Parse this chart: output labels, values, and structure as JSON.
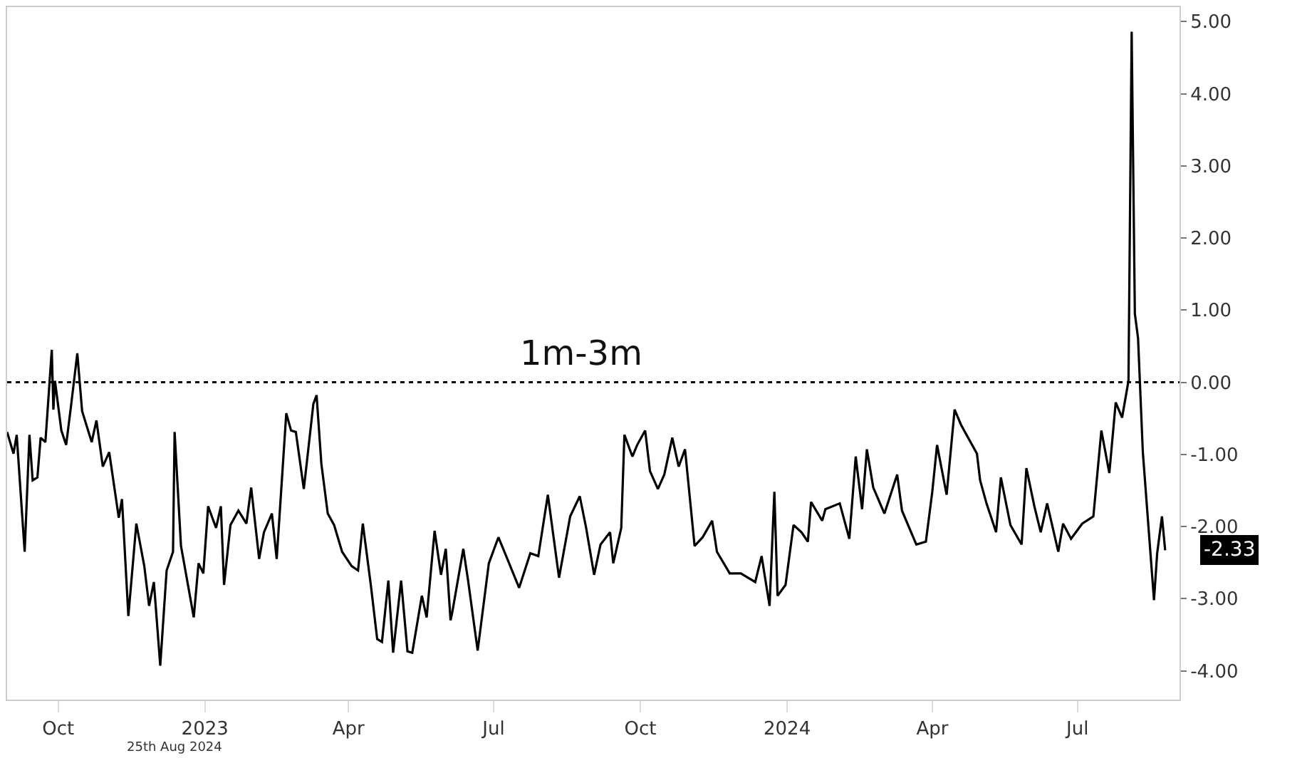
{
  "chart_data": {
    "type": "line",
    "x": [
      "2022-08-30",
      "2022-09-03",
      "2022-09-05",
      "2022-09-10",
      "2022-09-13",
      "2022-09-15",
      "2022-09-18",
      "2022-09-20",
      "2022-09-23",
      "2022-09-27",
      "2022-09-28",
      "2022-09-29",
      "2022-10-03",
      "2022-10-06",
      "2022-10-09",
      "2022-10-13",
      "2022-10-16",
      "2022-10-22",
      "2022-10-25",
      "2022-10-29",
      "2022-11-02",
      "2022-11-08",
      "2022-11-10",
      "2022-11-14",
      "2022-11-19",
      "2022-11-24",
      "2022-11-27",
      "2022-11-30",
      "2022-12-04",
      "2022-12-08",
      "2022-12-12",
      "2022-12-13",
      "2022-12-17",
      "2022-12-25",
      "2022-12-28",
      "2022-12-31",
      "2023-01-03",
      "2023-01-08",
      "2023-01-11",
      "2023-01-13",
      "2023-01-17",
      "2023-01-22",
      "2023-01-27",
      "2023-01-30",
      "2023-02-04",
      "2023-02-07",
      "2023-02-12",
      "2023-02-15",
      "2023-02-17",
      "2023-02-21",
      "2023-02-24",
      "2023-02-27",
      "2023-03-04",
      "2023-03-06",
      "2023-03-10",
      "2023-03-12",
      "2023-03-15",
      "2023-03-19",
      "2023-03-23",
      "2023-03-28",
      "2023-04-03",
      "2023-04-07",
      "2023-04-10",
      "2023-04-15",
      "2023-04-19",
      "2023-04-22",
      "2023-04-26",
      "2023-04-29",
      "2023-05-04",
      "2023-05-08",
      "2023-05-11",
      "2023-05-17",
      "2023-05-20",
      "2023-05-25",
      "2023-05-29",
      "2023-06-01",
      "2023-06-04",
      "2023-06-05",
      "2023-06-12",
      "2023-06-15",
      "2023-06-21",
      "2023-06-28",
      "2023-07-04",
      "2023-07-07",
      "2023-07-17",
      "2023-07-24",
      "2023-07-29",
      "2023-08-04",
      "2023-08-11",
      "2023-08-18",
      "2023-08-24",
      "2023-08-28",
      "2023-09-02",
      "2023-09-06",
      "2023-09-12",
      "2023-09-14",
      "2023-09-19",
      "2023-09-21",
      "2023-09-26",
      "2023-09-29",
      "2023-10-04",
      "2023-10-07",
      "2023-10-12",
      "2023-10-16",
      "2023-10-21",
      "2023-10-25",
      "2023-10-29",
      "2023-11-04",
      "2023-11-09",
      "2023-11-15",
      "2023-11-18",
      "2023-11-26",
      "2023-12-03",
      "2023-12-12",
      "2023-12-16",
      "2023-12-21",
      "2023-12-24",
      "2023-12-26",
      "2023-12-31",
      "2024-01-05",
      "2024-01-10",
      "2024-01-14",
      "2024-01-16",
      "2024-01-23",
      "2024-01-25",
      "2024-02-03",
      "2024-02-09",
      "2024-02-13",
      "2024-02-17",
      "2024-02-20",
      "2024-02-24",
      "2024-03-02",
      "2024-03-10",
      "2024-03-13",
      "2024-03-22",
      "2024-03-28",
      "2024-04-01",
      "2024-04-04",
      "2024-04-10",
      "2024-04-15",
      "2024-04-19",
      "2024-04-29",
      "2024-05-01",
      "2024-05-05",
      "2024-05-11",
      "2024-05-14",
      "2024-05-20",
      "2024-05-27",
      "2024-05-30",
      "2024-06-04",
      "2024-06-08",
      "2024-06-12",
      "2024-06-19",
      "2024-06-22",
      "2024-06-27",
      "2024-07-04",
      "2024-07-11",
      "2024-07-16",
      "2024-07-21",
      "2024-07-25",
      "2024-07-29",
      "2024-08-02",
      "2024-08-04",
      "2024-08-06",
      "2024-08-08",
      "2024-08-11",
      "2024-08-18",
      "2024-08-20",
      "2024-08-23",
      "2024-08-25"
    ],
    "series": [
      {
        "color": "#000000",
        "values": [
          -0.69,
          -0.99,
          -0.73,
          -2.35,
          -0.73,
          -1.36,
          -1.32,
          -0.77,
          -0.83,
          0.45,
          -0.38,
          0.02,
          -0.67,
          -0.87,
          -0.34,
          0.4,
          -0.4,
          -0.83,
          -0.53,
          -1.17,
          -0.97,
          -1.88,
          -1.62,
          -3.24,
          -1.96,
          -2.55,
          -3.1,
          -2.77,
          -3.93,
          -2.61,
          -2.35,
          -0.69,
          -2.27,
          -3.26,
          -2.51,
          -2.65,
          -1.72,
          -2.02,
          -1.72,
          -2.81,
          -1.98,
          -1.78,
          -1.96,
          -1.46,
          -2.45,
          -2.08,
          -1.82,
          -2.45,
          -1.78,
          -0.43,
          -0.67,
          -0.69,
          -1.48,
          -1.09,
          -0.3,
          -0.18,
          -1.13,
          -1.82,
          -1.98,
          -2.35,
          -2.55,
          -2.61,
          -1.96,
          -2.81,
          -3.56,
          -3.6,
          -2.75,
          -3.75,
          -2.75,
          -3.73,
          -3.75,
          -2.96,
          -3.26,
          -2.06,
          -2.67,
          -2.31,
          -3.3,
          -3.2,
          -2.31,
          -2.75,
          -3.72,
          -2.51,
          -2.15,
          -2.31,
          -2.85,
          -2.37,
          -2.41,
          -1.56,
          -2.71,
          -1.86,
          -1.58,
          -2.02,
          -2.67,
          -2.25,
          -2.08,
          -2.51,
          -2.02,
          -0.73,
          -1.03,
          -0.87,
          -0.67,
          -1.23,
          -1.48,
          -1.28,
          -0.77,
          -1.17,
          -0.93,
          -2.27,
          -2.15,
          -1.92,
          -2.35,
          -2.65,
          -2.65,
          -2.77,
          -2.41,
          -3.1,
          -1.52,
          -2.96,
          -2.81,
          -1.98,
          -2.08,
          -2.21,
          -1.66,
          -1.92,
          -1.76,
          -1.68,
          -2.17,
          -1.03,
          -1.76,
          -0.93,
          -1.46,
          -1.82,
          -1.28,
          -1.78,
          -2.25,
          -2.21,
          -1.52,
          -0.87,
          -1.56,
          -0.38,
          -0.59,
          -0.99,
          -1.36,
          -1.68,
          -2.08,
          -1.32,
          -1.98,
          -2.25,
          -1.19,
          -1.72,
          -2.08,
          -1.68,
          -2.35,
          -1.96,
          -2.17,
          -1.96,
          -1.86,
          -0.67,
          -1.26,
          -0.28,
          -0.49,
          0.02,
          4.86,
          0.95,
          0.61,
          -0.97,
          -3.02,
          -2.37,
          -1.86,
          -2.33
        ]
      }
    ],
    "xlim": [
      "2022-08-30",
      "2024-09-03"
    ],
    "xticks": [
      {
        "value": "2022-10-01",
        "label": "Oct"
      },
      {
        "value": "2023-01-01",
        "label": "2023"
      },
      {
        "value": "2023-04-01",
        "label": "Apr"
      },
      {
        "value": "2023-07-01",
        "label": "Jul"
      },
      {
        "value": "2023-10-01",
        "label": "Oct"
      },
      {
        "value": "2024-01-01",
        "label": "2024"
      },
      {
        "value": "2024-04-01",
        "label": "Apr"
      },
      {
        "value": "2024-07-01",
        "label": "Jul"
      }
    ],
    "ylim": [
      -4.4,
      5.2
    ],
    "yticks": [
      {
        "value": -4,
        "label": "-4.00"
      },
      {
        "value": -3,
        "label": "-3.00"
      },
      {
        "value": -2,
        "label": "-2.00"
      },
      {
        "value": -1,
        "label": "-1.00"
      },
      {
        "value": 0,
        "label": "0.00"
      },
      {
        "value": 1,
        "label": "1.00"
      },
      {
        "value": 2,
        "label": "2.00"
      },
      {
        "value": 3,
        "label": "3.00"
      },
      {
        "value": 4,
        "label": "4.00"
      },
      {
        "value": 5,
        "label": "5.00"
      }
    ],
    "ref_lines": [
      {
        "axis": "y",
        "value": 0,
        "label": "1m-3m",
        "color": "#000000",
        "line_style": "dotted"
      }
    ],
    "annotations": [
      {
        "text": "-2.33",
        "x": "2024-08-25",
        "y": -2.33
      },
      "25th Aug 2024"
    ],
    "grid": false,
    "marker": "none",
    "line_style": "solid"
  }
}
